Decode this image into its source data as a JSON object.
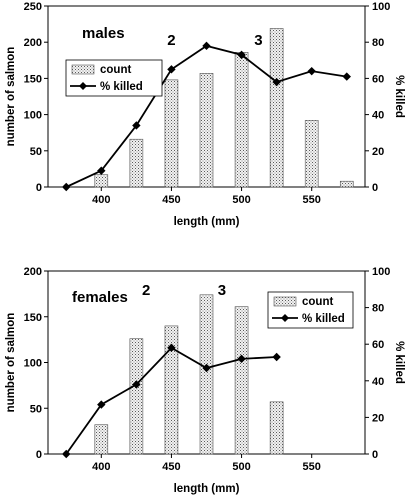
{
  "chart_data": [
    {
      "type": "bar",
      "panel_label": "males",
      "xlabel": "length (mm)",
      "ylabel": "number of salmon",
      "y2label": "% killed",
      "xlim": [
        362,
        588
      ],
      "ylim": [
        0,
        250
      ],
      "y2lim": [
        0,
        100
      ],
      "xticks": [
        400,
        450,
        500,
        550
      ],
      "yticks": [
        0,
        50,
        100,
        150,
        200,
        250
      ],
      "y2ticks": [
        0,
        20,
        40,
        60,
        80,
        100
      ],
      "legend": {
        "position": "top-left",
        "bar_label": "count",
        "line_label": "% killed"
      },
      "annotations": [
        {
          "text": "2",
          "x": 450
        },
        {
          "text": "3",
          "x": 512
        }
      ],
      "series": [
        {
          "name": "count",
          "axis": "left",
          "kind": "bar",
          "x": [
            375,
            400,
            425,
            450,
            475,
            500,
            525,
            550,
            575
          ],
          "values": [
            0,
            17,
            66,
            148,
            157,
            186,
            219,
            92,
            8
          ]
        },
        {
          "name": "% killed",
          "axis": "right",
          "kind": "line",
          "x": [
            375,
            400,
            425,
            450,
            475,
            500,
            525,
            550,
            575
          ],
          "values": [
            0,
            9,
            34,
            65,
            78,
            73,
            58,
            64,
            61
          ]
        }
      ]
    },
    {
      "type": "bar",
      "panel_label": "females",
      "xlabel": "length (mm)",
      "ylabel": "number of salmon",
      "y2label": "% killed",
      "xlim": [
        362,
        588
      ],
      "ylim": [
        0,
        200
      ],
      "y2lim": [
        0,
        100
      ],
      "xticks": [
        400,
        450,
        500,
        550
      ],
      "yticks": [
        0,
        50,
        100,
        150,
        200
      ],
      "y2ticks": [
        0,
        20,
        40,
        60,
        80,
        100
      ],
      "legend": {
        "position": "top-right",
        "bar_label": "count",
        "line_label": "% killed"
      },
      "annotations": [
        {
          "text": "2",
          "x": 432
        },
        {
          "text": "3",
          "x": 486
        }
      ],
      "series": [
        {
          "name": "count",
          "axis": "left",
          "kind": "bar",
          "x": [
            375,
            400,
            425,
            450,
            475,
            500,
            525
          ],
          "values": [
            0,
            32,
            126,
            140,
            174,
            161,
            57
          ]
        },
        {
          "name": "% killed",
          "axis": "right",
          "kind": "line",
          "x": [
            375,
            400,
            425,
            450,
            475,
            500,
            525
          ],
          "values": [
            0,
            27,
            38,
            58,
            47,
            52,
            53
          ]
        }
      ]
    }
  ]
}
